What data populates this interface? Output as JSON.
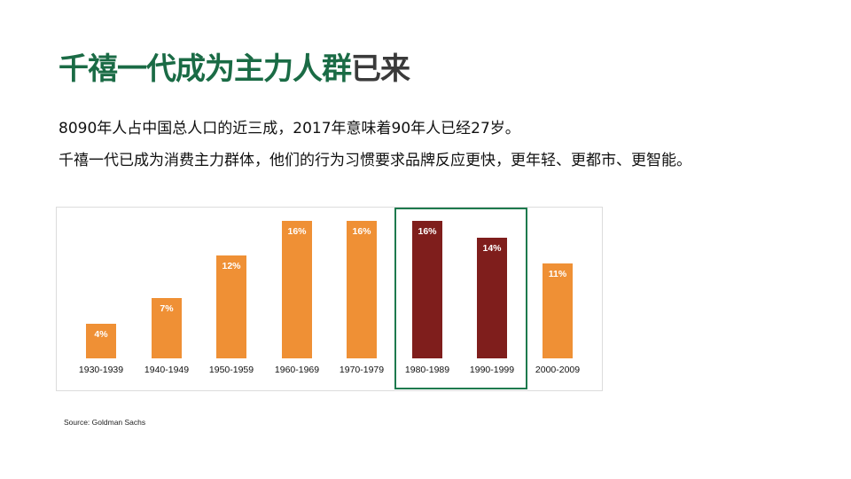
{
  "slide": {
    "title_highlight": "千禧一代成为主力人群",
    "title_rest": "已来",
    "line1": "8090年人占中国总人口的近三成，2017年意味着90年人已经27岁。",
    "line2": "千禧一代已成为消费主力群体，他们的行为习惯要求品牌反应更快，更年轻、更都市、更智能。",
    "source": "Source: Goldman Sachs"
  },
  "colors": {
    "title_green": "#1a6b45",
    "bar_orange": "#ef9035",
    "bar_dark_red": "#7f1e1c",
    "highlight_box": "#1e7a4e"
  },
  "chart_data": {
    "type": "bar",
    "title": "",
    "xlabel": "",
    "ylabel": "",
    "categories": [
      "1930-1939",
      "1940-1949",
      "1950-1959",
      "1960-1969",
      "1970-1979",
      "1980-1989",
      "1990-1999",
      "2000-2009"
    ],
    "values": [
      4,
      7,
      12,
      16,
      16,
      16,
      14,
      11
    ],
    "labels": [
      "4%",
      "7%",
      "12%",
      "16%",
      "16%",
      "16%",
      "14%",
      "11%"
    ],
    "highlighted": [
      "1980-1989",
      "1990-1999"
    ],
    "ylim": [
      0,
      16
    ],
    "grid": false,
    "legend": "none",
    "source": "Source: Goldman Sachs"
  }
}
